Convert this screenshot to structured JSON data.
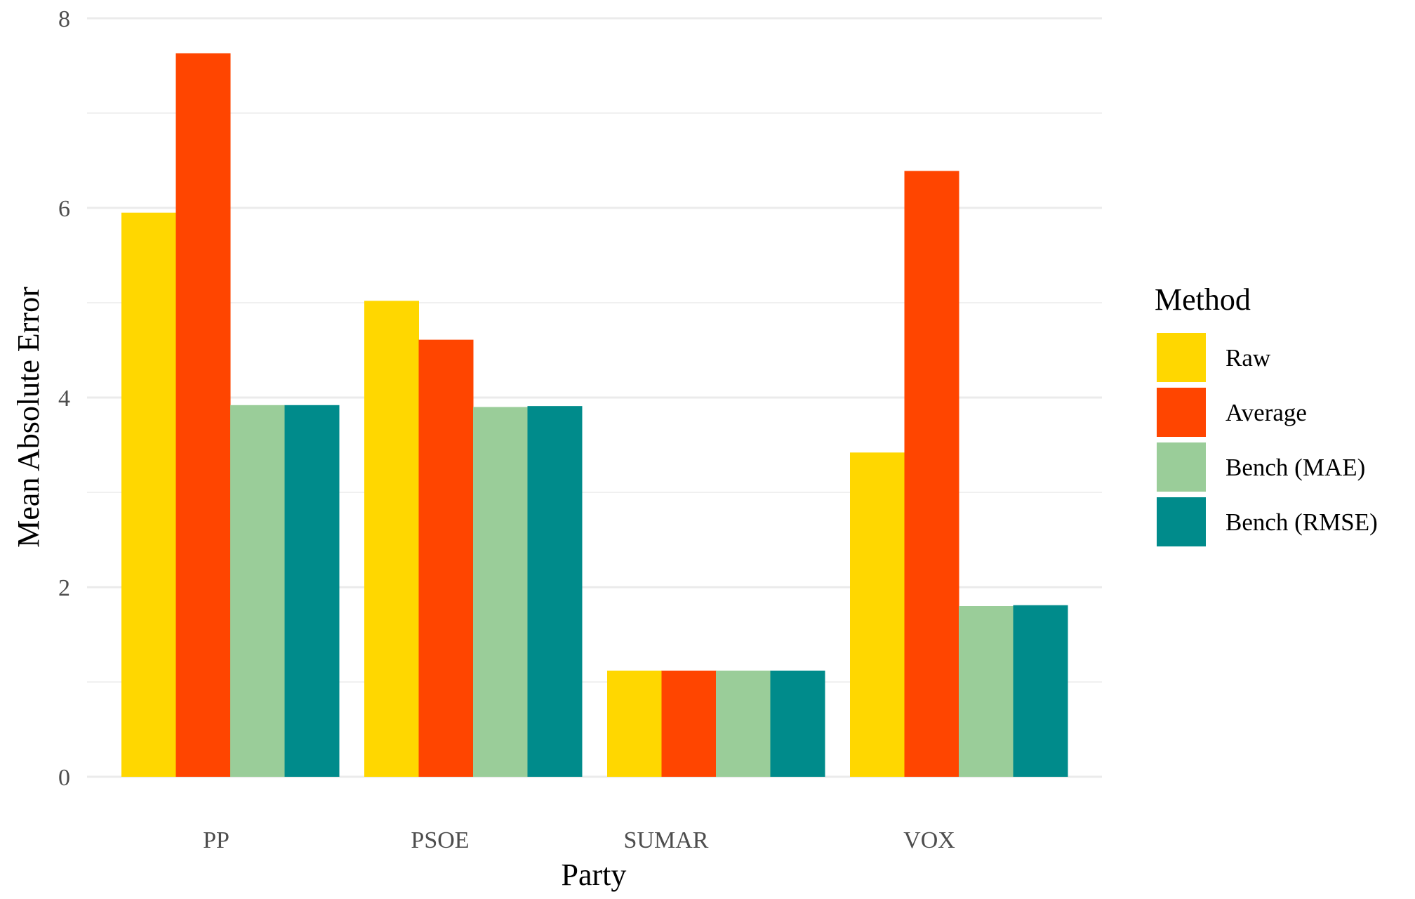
{
  "chart_data": {
    "type": "bar",
    "categories": [
      "PP",
      "PSOE",
      "SUMAR",
      "VOX"
    ],
    "series": [
      {
        "name": "Raw",
        "color": "#FFD700",
        "values": [
          5.95,
          5.02,
          1.12,
          3.42
        ]
      },
      {
        "name": "Average",
        "color": "#FF4500",
        "values": [
          7.63,
          4.61,
          1.12,
          6.39
        ]
      },
      {
        "name": "Bench (MAE)",
        "color": "#9ACD99",
        "values": [
          3.92,
          3.9,
          1.12,
          1.8
        ]
      },
      {
        "name": "Bench (RMSE)",
        "color": "#008B8B",
        "values": [
          3.92,
          3.91,
          1.12,
          1.81
        ]
      }
    ],
    "xlabel": "Party",
    "ylabel": "Mean Absolute Error",
    "ylim": [
      0,
      8
    ],
    "yticks": [
      0,
      2,
      4,
      6,
      8
    ],
    "grid": true,
    "legend": {
      "title": "Method",
      "position": "right"
    }
  }
}
